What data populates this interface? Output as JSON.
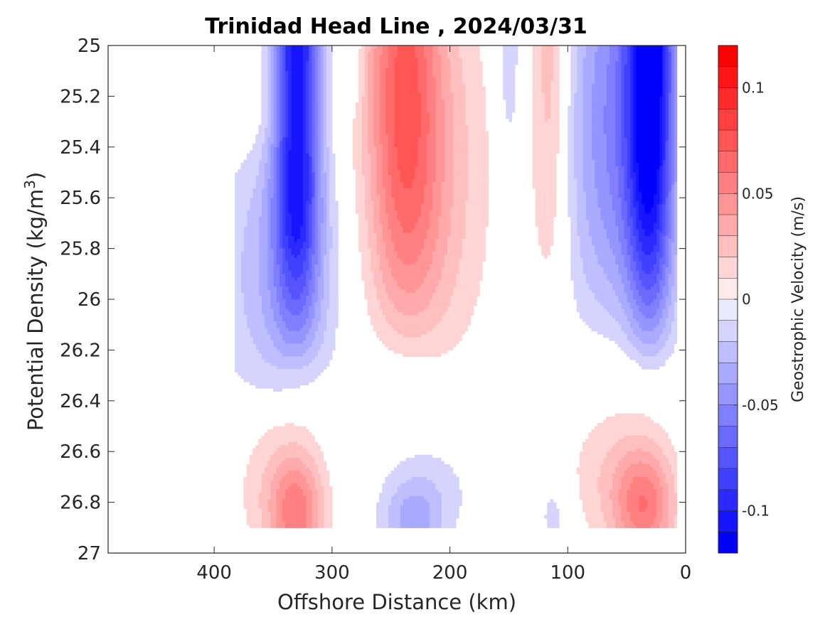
{
  "chart_data": {
    "type": "heatmap",
    "title": "Trinidad Head Line , 2024/03/31",
    "xlabel": "Offshore Distance (km)",
    "ylabel_main": "Potential Density (kg/m",
    "ylabel_sup": "3",
    "ylabel_close": ")",
    "xlim": [
      490,
      0
    ],
    "ylim": [
      25,
      27
    ],
    "x_reversed": true,
    "y_reversed": true,
    "x_ticks": [
      400,
      300,
      200,
      100,
      0
    ],
    "x_tick_labels": [
      "400",
      "300",
      "200",
      "100",
      "0"
    ],
    "y_ticks": [
      25,
      25.2,
      25.4,
      25.6,
      25.8,
      26,
      26.2,
      26.4,
      26.6,
      26.8,
      27
    ],
    "y_tick_labels": [
      "25",
      "25.2",
      "25.4",
      "25.6",
      "25.8",
      "26",
      "26.2",
      "26.4",
      "26.6",
      "26.8",
      "27"
    ],
    "colorbar": {
      "label": "Geostrophic Velocity (m/s)",
      "range": [
        -0.12,
        0.12
      ],
      "step": 0.01,
      "ticks": [
        0.1,
        0.05,
        0,
        -0.05,
        -0.1
      ],
      "tick_labels": [
        "0.1",
        "0.05",
        "0",
        "-0.05",
        "-0.1"
      ],
      "colormap": "blue-white-red",
      "neg_color": "#0000ff",
      "pos_color": "#ff0000",
      "zero_color": "#ffffff"
    },
    "features": [
      {
        "name": "offshore southward jet",
        "x_center": 330,
        "sigma_core": [
          25,
          25.9
        ],
        "v_min": -0.11
      },
      {
        "name": "mid-section northward flow",
        "x_center": 240,
        "sigma_core": [
          25,
          25.6
        ],
        "v_max": 0.06
      },
      {
        "name": "weak southward band",
        "x_center": 150,
        "sigma_core": [
          25,
          25.5
        ],
        "v_min": -0.02
      },
      {
        "name": "inner northward band",
        "x_center": 115,
        "sigma_core": [
          25,
          25.7
        ],
        "v_max": 0.03
      },
      {
        "name": "nearshore southward jet",
        "x_center": 30,
        "sigma_core": [
          25,
          26.0
        ],
        "v_min": -0.11
      },
      {
        "name": "deep northward core offshore",
        "x_center": 330,
        "sigma_core": [
          26.6,
          26.9
        ],
        "v_max": 0.05
      },
      {
        "name": "deep southward core",
        "x_center": 235,
        "sigma_core": [
          26.75,
          26.9
        ],
        "v_min": -0.03
      },
      {
        "name": "deep northward core nearshore",
        "x_center": 40,
        "sigma_core": [
          26.6,
          26.9
        ],
        "v_max": 0.05
      }
    ]
  }
}
